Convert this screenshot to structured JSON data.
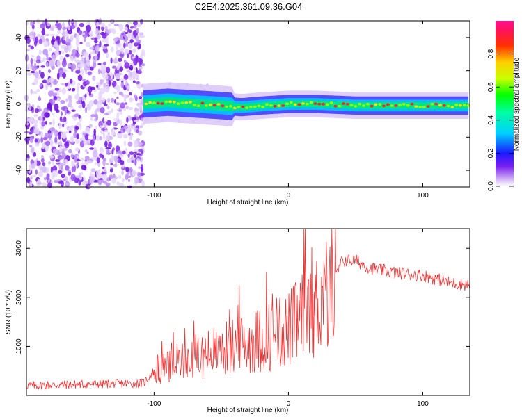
{
  "title": "C2E4.2025.361.09.36.G04",
  "chart_data": [
    {
      "type": "heatmap",
      "name": "spectrogram",
      "xlabel": "Height of straight line (km)",
      "ylabel": "Frequency (Hz)",
      "xlim": [
        -195,
        135
      ],
      "ylim": [
        -50,
        50
      ],
      "xticks": [
        -100,
        0,
        100
      ],
      "xtick_labels": [
        "-100",
        "0",
        "100"
      ],
      "yticks": [
        -40,
        -20,
        0,
        20,
        40
      ],
      "ytick_labels": [
        "-40",
        "-20",
        "0",
        "20",
        "40"
      ],
      "noise_region_x": [
        -195,
        -108
      ],
      "signal_track": {
        "x": [
          -108,
          -90,
          -70,
          -50,
          -35,
          -20,
          0,
          20,
          50,
          80,
          100,
          120,
          135
        ],
        "freq": [
          0,
          1,
          0,
          -1,
          -2,
          -1,
          0,
          0,
          -1,
          -1,
          -1,
          -1,
          -1
        ]
      },
      "colorbar": {
        "label": "Normalized spectral amplitude",
        "range": [
          0,
          1
        ],
        "ticks": [
          0.0,
          0.2,
          0.4,
          0.6,
          0.8
        ],
        "tick_labels": [
          "0.0",
          "0.2",
          "0.4",
          "0.6",
          "0.8"
        ]
      }
    },
    {
      "type": "line",
      "name": "snr",
      "xlabel": "Height of straight line (km)",
      "ylabel": "SNR (10 * v/v)",
      "xlim": [
        -195,
        135
      ],
      "ylim": [
        0,
        3400
      ],
      "xticks": [
        -100,
        0,
        100
      ],
      "xtick_labels": [
        "-100",
        "0",
        "100"
      ],
      "yticks": [
        1000,
        2000,
        3000
      ],
      "ytick_labels": [
        "1000",
        "2000",
        "3000"
      ],
      "color": "#ee3333",
      "series": [
        {
          "name": "SNR",
          "x": [
            -195,
            -150,
            -108,
            -100,
            -80,
            -60,
            -40,
            -20,
            0,
            20,
            35,
            40,
            50,
            60,
            80,
            100,
            120,
            135
          ],
          "y": [
            200,
            230,
            250,
            500,
            700,
            850,
            1000,
            1150,
            1350,
            1800,
            2400,
            2750,
            2750,
            2600,
            2500,
            2450,
            2300,
            2250
          ]
        }
      ]
    }
  ]
}
